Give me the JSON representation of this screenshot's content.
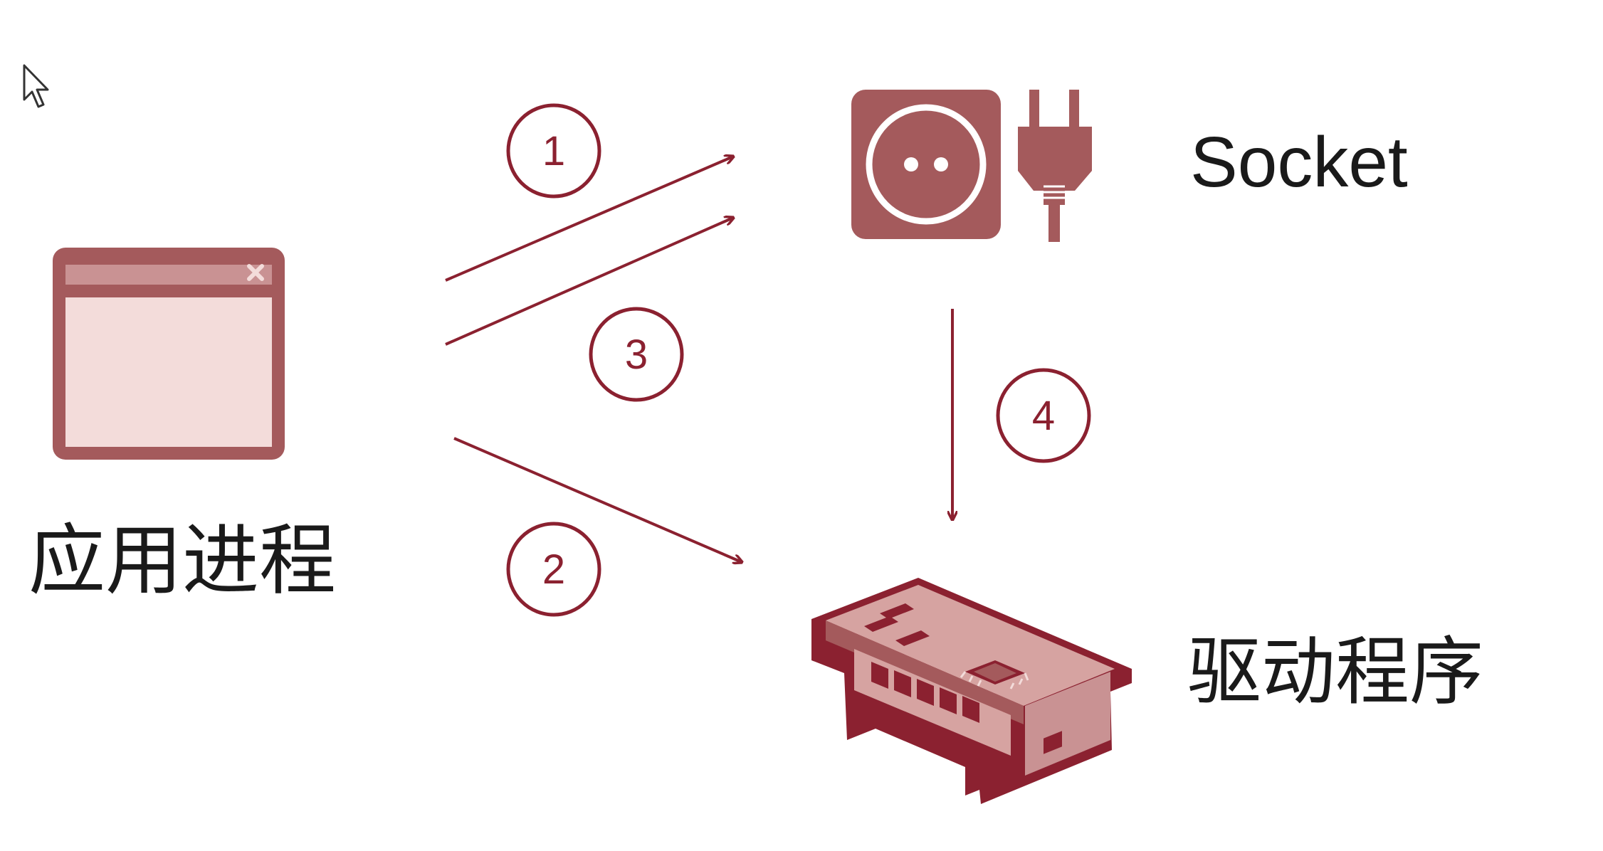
{
  "colors": {
    "accent": "#8b2130",
    "icon_fill": "#a45a5c",
    "icon_light": "#f3dcda",
    "background": "#ffffff",
    "text": "#1a1a1a"
  },
  "nodes": {
    "app_process": {
      "label": "应用进程",
      "icon": "window-icon"
    },
    "socket": {
      "label": "Socket",
      "icon": "power-socket-plug-icon"
    },
    "driver": {
      "label": "驱动程序",
      "icon": "network-card-icon"
    }
  },
  "steps": [
    {
      "number": "1",
      "from": "应用进程",
      "to": "Socket"
    },
    {
      "number": "2",
      "from": "应用进程",
      "to": "驱动程序"
    },
    {
      "number": "3",
      "from": "应用进程",
      "to": "Socket"
    },
    {
      "number": "4",
      "from": "Socket",
      "to": "驱动程序"
    }
  ]
}
